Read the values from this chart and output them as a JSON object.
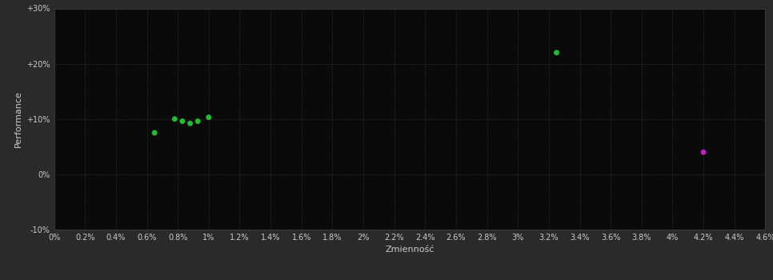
{
  "background_color": "#2a2a2a",
  "plot_bg_color": "#0a0a0a",
  "grid_color": "#444444",
  "text_color": "#cccccc",
  "xlabel": "Zmienność",
  "ylabel": "Performance",
  "xlim": [
    0.0,
    0.046
  ],
  "ylim": [
    -0.1,
    0.3
  ],
  "xticks": [
    0.0,
    0.002,
    0.004,
    0.006,
    0.008,
    0.01,
    0.012,
    0.014,
    0.016,
    0.018,
    0.02,
    0.022,
    0.024,
    0.026,
    0.028,
    0.03,
    0.032,
    0.034,
    0.036,
    0.038,
    0.04,
    0.042,
    0.044,
    0.046
  ],
  "xtick_labels": [
    "0%",
    "0.2%",
    "0.4%",
    "0.6%",
    "0.8%",
    "1%",
    "1.2%",
    "1.4%",
    "1.6%",
    "1.8%",
    "2%",
    "2.2%",
    "2.4%",
    "2.6%",
    "2.8%",
    "3%",
    "3.2%",
    "3.4%",
    "3.6%",
    "3.8%",
    "4%",
    "4.2%",
    "4.4%",
    "4.6%"
  ],
  "yticks": [
    -0.1,
    0.0,
    0.1,
    0.2,
    0.3
  ],
  "ytick_labels": [
    "-10%",
    "0%",
    "+10%",
    "+20%",
    "+30%"
  ],
  "green_points": [
    [
      0.0065,
      0.075
    ],
    [
      0.0078,
      0.1
    ],
    [
      0.0083,
      0.096
    ],
    [
      0.0088,
      0.092
    ],
    [
      0.0093,
      0.096
    ],
    [
      0.01,
      0.103
    ],
    [
      0.0325,
      0.22
    ]
  ],
  "magenta_points": [
    [
      0.042,
      0.04
    ]
  ],
  "green_color": "#22bb33",
  "magenta_color": "#bb22bb",
  "marker_size": 25,
  "axis_fontsize": 8,
  "tick_fontsize": 7
}
